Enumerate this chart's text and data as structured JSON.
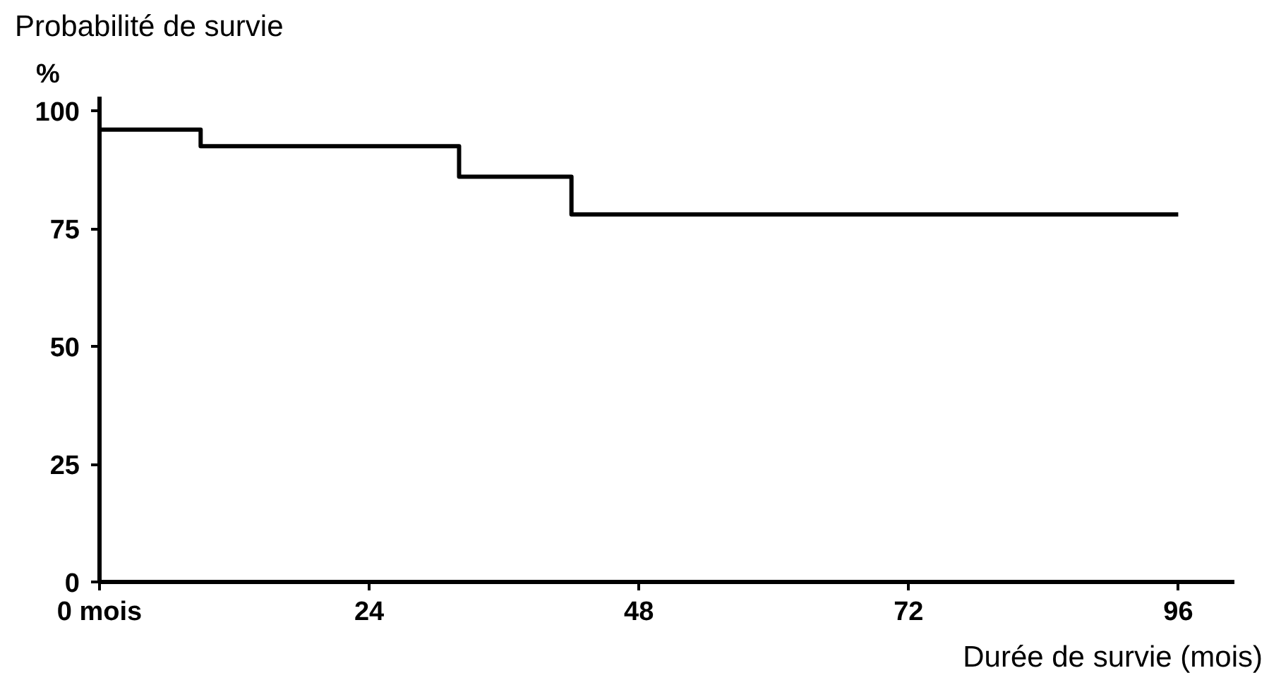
{
  "chart_data": {
    "type": "step",
    "title": "Probabilité de survie",
    "ylabel": "%",
    "xlabel": "Durée de survie (mois)",
    "x": [
      0,
      9,
      32,
      42,
      96
    ],
    "series": [
      {
        "color": "#000000",
        "values": [
          96,
          92.5,
          86,
          78,
          78
        ]
      }
    ],
    "xlim": [
      0,
      101
    ],
    "ylim": [
      0,
      103
    ],
    "xticks": [
      {
        "value": 0,
        "label": "0 mois"
      },
      24,
      48,
      72,
      96
    ],
    "yticks": [
      0,
      25,
      50,
      75,
      100
    ],
    "grid": false,
    "marker": "none",
    "line_style": "solid"
  }
}
